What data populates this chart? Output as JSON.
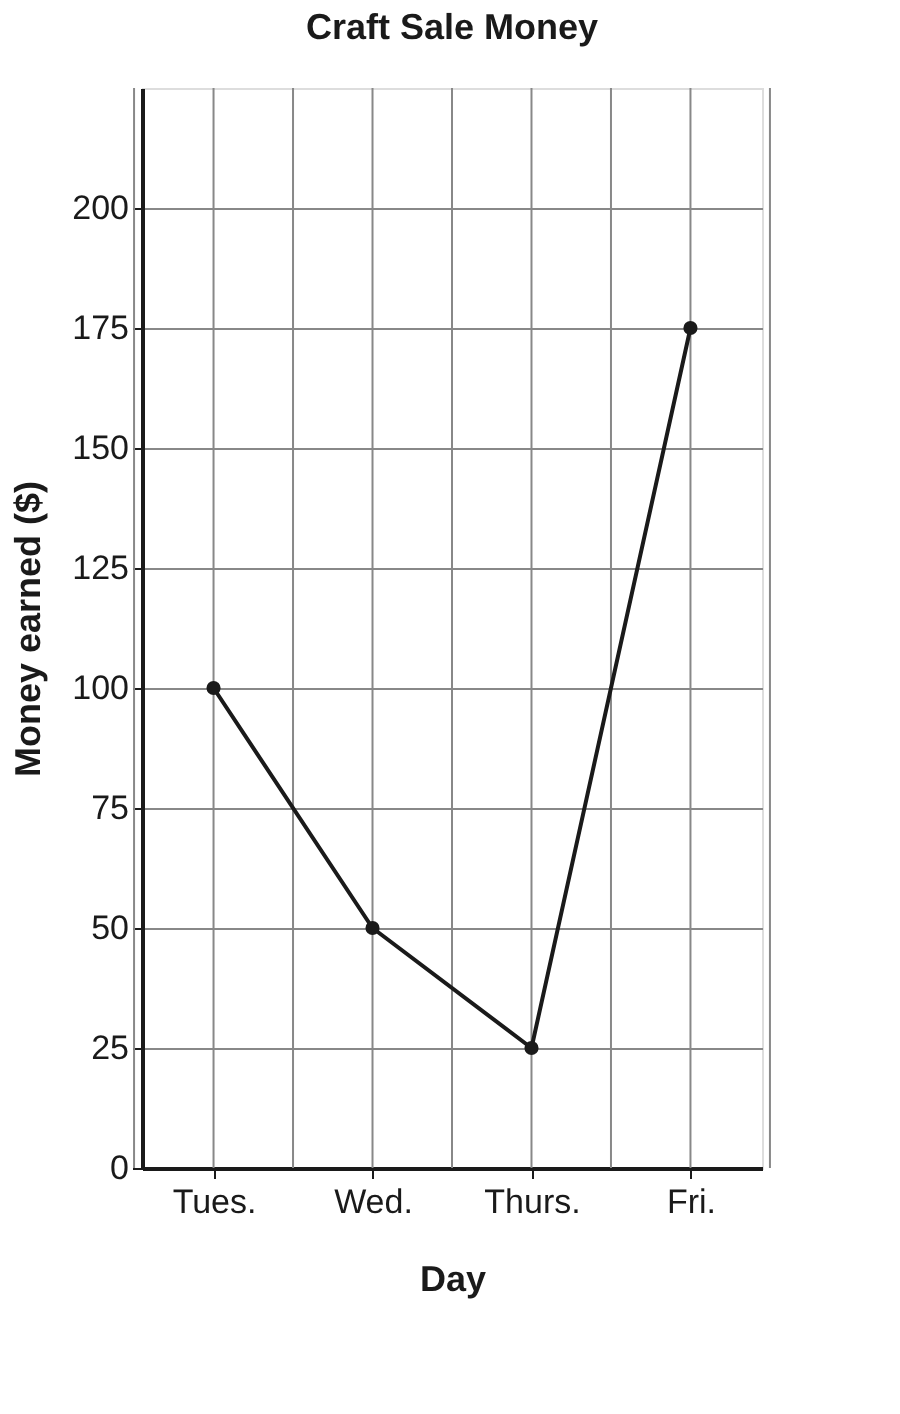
{
  "chart_data": {
    "type": "line",
    "title": "Craft Sale Money",
    "xlabel": "Day",
    "ylabel": "Money earned ($)",
    "categories": [
      "Tues.",
      "Wed.",
      "Thurs.",
      "Fri."
    ],
    "series": [
      {
        "color": "#1a1a1a",
        "values": [
          100,
          50,
          25,
          175
        ]
      }
    ],
    "ylim": [
      0,
      225
    ],
    "yticks": [
      0,
      25,
      50,
      75,
      100,
      125,
      150,
      175,
      200
    ],
    "grid": true,
    "marker": "circle",
    "line_style": "solid"
  }
}
